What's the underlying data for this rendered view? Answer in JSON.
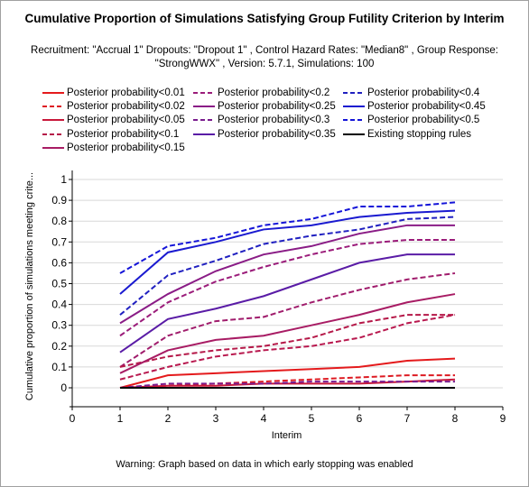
{
  "chart_data": {
    "type": "line",
    "title": "Cumulative Proportion of Simulations Satisfying Group Futility Criterion by Interim",
    "subtitle": "Recruitment: \"Accrual 1\" Dropouts: \"Dropout 1\" , Control Hazard Rates: \"Median8\" , Group Response: \"StrongWWX\" , Version: 5.7.1, Simulations: 100",
    "xlabel": "Interim",
    "ylabel": "Cumulative proportion of simulations meeting crite...",
    "xlim": [
      0,
      9
    ],
    "ylim": [
      0,
      1
    ],
    "x_ticks": [
      "0",
      "1",
      "2",
      "3",
      "4",
      "5",
      "6",
      "7",
      "8",
      "9"
    ],
    "y_ticks": [
      "0",
      "0.1",
      "0.2",
      "0.3",
      "0.4",
      "0.5",
      "0.6",
      "0.7",
      "0.8",
      "0.9",
      "1"
    ],
    "x": [
      1,
      2,
      3,
      4,
      5,
      6,
      7,
      8
    ],
    "grid": true,
    "legend_placement": "top",
    "series": [
      {
        "name": "Posterior probability<0.01",
        "color": "#e41a1c",
        "dash": "solid",
        "values": [
          0,
          0.06,
          0.07,
          0.08,
          0.09,
          0.1,
          0.13,
          0.14
        ]
      },
      {
        "name": "Posterior probability<0.2",
        "color": "#9b1c7a",
        "dash": "dashed",
        "values": [
          0.25,
          0.41,
          0.51,
          0.58,
          0.64,
          0.69,
          0.71,
          0.71
        ]
      },
      {
        "name": "Posterior probability<0.4",
        "color": "#2020c0",
        "dash": "dashed",
        "values": [
          0.35,
          0.54,
          0.61,
          0.69,
          0.73,
          0.76,
          0.81,
          0.82
        ]
      },
      {
        "name": "Posterior probability<0.02",
        "color": "#dd1a22",
        "dash": "dashed",
        "values": [
          0,
          0.01,
          0.02,
          0.03,
          0.04,
          0.05,
          0.06,
          0.06
        ]
      },
      {
        "name": "Posterior probability<0.25",
        "color": "#8a1c86",
        "dash": "solid",
        "values": [
          0.31,
          0.45,
          0.56,
          0.64,
          0.68,
          0.74,
          0.78,
          0.78
        ]
      },
      {
        "name": "Posterior probability<0.45",
        "color": "#1a1ad0",
        "dash": "solid",
        "values": [
          0.45,
          0.65,
          0.7,
          0.76,
          0.78,
          0.82,
          0.84,
          0.85
        ]
      },
      {
        "name": "Posterior probability<0.05",
        "color": "#c8183a",
        "dash": "solid",
        "values": [
          0,
          0.01,
          0.01,
          0.02,
          0.02,
          0.02,
          0.03,
          0.04
        ]
      },
      {
        "name": "Posterior probability<0.3",
        "color": "#7a1c8e",
        "dash": "dashed",
        "values": [
          0,
          0.02,
          0.02,
          0.02,
          0.03,
          0.03,
          0.03,
          0.03
        ]
      },
      {
        "name": "Posterior probability<0.5",
        "color": "#1414d8",
        "dash": "dashed",
        "values": [
          0.55,
          0.68,
          0.72,
          0.78,
          0.81,
          0.87,
          0.87,
          0.89
        ]
      },
      {
        "name": "Posterior probability<0.1",
        "color": "#b51848",
        "dash": "dashed",
        "values": [
          0.1,
          0.15,
          0.18,
          0.2,
          0.24,
          0.31,
          0.35,
          0.35
        ]
      },
      {
        "name": "Posterior probability<0.35",
        "color": "#5a1ca6",
        "dash": "solid",
        "values": [
          0.17,
          0.33,
          0.38,
          0.44,
          0.52,
          0.6,
          0.64,
          0.64
        ]
      },
      {
        "name": "Existing stopping rules",
        "color": "#000000",
        "dash": "solid",
        "values": [
          0,
          0,
          0,
          0,
          0,
          0,
          0,
          0
        ]
      },
      {
        "name": "Posterior probability<0.15",
        "color": "#a81c64",
        "dash": "solid",
        "values": [
          0.07,
          0.18,
          0.23,
          0.25,
          0.3,
          0.35,
          0.41,
          0.45
        ]
      }
    ],
    "extra_lines": [
      {
        "color": "#b8184e",
        "dash": "dashed",
        "values": [
          0.04,
          0.1,
          0.15,
          0.18,
          0.2,
          0.24,
          0.31,
          0.35
        ]
      },
      {
        "color": "#a01c6c",
        "dash": "dashed",
        "values": [
          0.1,
          0.25,
          0.32,
          0.34,
          0.41,
          0.47,
          0.52,
          0.55
        ]
      }
    ]
  },
  "footer": {
    "warning": "Warning: Graph based on data in which early stopping was enabled"
  }
}
